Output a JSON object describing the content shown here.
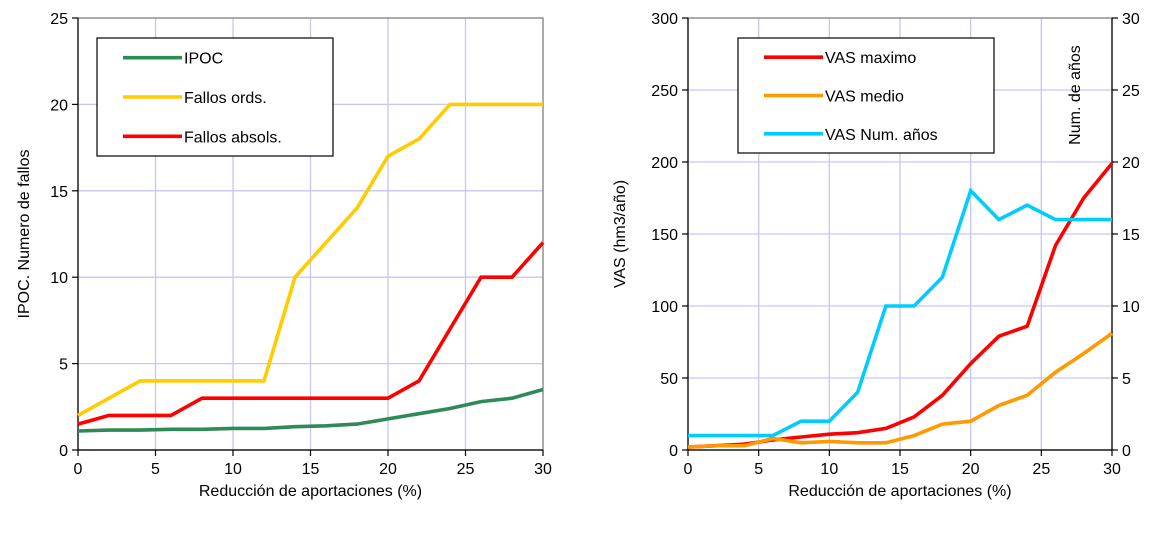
{
  "charts": [
    {
      "type": "line",
      "xlabel": "Reducción de aportaciones (%)",
      "ylabel": "IPOC.  Numero de fallos",
      "xlim": [
        0,
        30
      ],
      "ylim": [
        0,
        25
      ],
      "x_ticks": [
        0,
        5,
        10,
        15,
        20,
        25,
        30
      ],
      "y_ticks": [
        0,
        5,
        10,
        15,
        20,
        25
      ],
      "grid": true,
      "legend_placement": "top-left",
      "series": [
        {
          "name": "IPOC",
          "color": "#2e8b57",
          "x": [
            0,
            2,
            4,
            6,
            8,
            10,
            12,
            14,
            16,
            18,
            20,
            22,
            24,
            26,
            28,
            30
          ],
          "y": [
            1.1,
            1.15,
            1.15,
            1.2,
            1.2,
            1.25,
            1.25,
            1.35,
            1.4,
            1.5,
            1.8,
            2.1,
            2.4,
            2.8,
            3.0,
            3.5
          ]
        },
        {
          "name": "Fallos ords.",
          "color": "#ffcc00",
          "x": [
            0,
            2,
            4,
            6,
            8,
            10,
            12,
            14,
            16,
            18,
            20,
            22,
            24,
            26,
            28,
            30
          ],
          "y": [
            2,
            3,
            4,
            4,
            4,
            4,
            4,
            10,
            12,
            14,
            17,
            18,
            20,
            20,
            20,
            20
          ]
        },
        {
          "name": "Fallos absols.",
          "color": "#ff0000",
          "x": [
            0,
            2,
            4,
            6,
            8,
            10,
            12,
            14,
            16,
            18,
            20,
            22,
            24,
            26,
            28,
            30
          ],
          "y": [
            1.5,
            2,
            2,
            2,
            3,
            3,
            3,
            3,
            3,
            3,
            3,
            4,
            7,
            10,
            10,
            12
          ]
        }
      ]
    },
    {
      "type": "line",
      "xlabel": "Reducción de aportaciones (%)",
      "ylabel": "VAS (hm3/año)",
      "y2label": "Num. de años",
      "xlim": [
        0,
        30
      ],
      "ylim": [
        0,
        300
      ],
      "y2lim": [
        0,
        30
      ],
      "x_ticks": [
        0,
        5,
        10,
        15,
        20,
        25,
        30
      ],
      "y_ticks": [
        0,
        50,
        100,
        150,
        200,
        250,
        300
      ],
      "y2_ticks": [
        0,
        5,
        10,
        15,
        20,
        25,
        30
      ],
      "grid": true,
      "legend_placement": "top-left",
      "series": [
        {
          "name": "VAS maximo",
          "color": "#ff0000",
          "axis": "left",
          "x": [
            0,
            2,
            4,
            6,
            8,
            10,
            12,
            14,
            16,
            18,
            20,
            22,
            24,
            26,
            28,
            30
          ],
          "y": [
            2,
            3,
            4,
            7,
            9,
            11,
            12,
            15,
            23,
            38,
            60,
            79,
            86,
            142,
            175,
            199
          ]
        },
        {
          "name": "VAS medio",
          "color": "#ff9900",
          "axis": "left",
          "x": [
            0,
            2,
            4,
            6,
            8,
            10,
            12,
            14,
            16,
            18,
            20,
            22,
            24,
            26,
            28,
            30
          ],
          "y": [
            2,
            3,
            3,
            8,
            5,
            6,
            5,
            5,
            10,
            18,
            20,
            31,
            38,
            54,
            67,
            81
          ]
        },
        {
          "name": "VAS Num. años",
          "color": "#00ccff",
          "axis": "right",
          "x": [
            0,
            2,
            4,
            6,
            8,
            10,
            12,
            14,
            16,
            18,
            20,
            22,
            24,
            26,
            28,
            30
          ],
          "y": [
            1,
            1,
            1,
            1,
            2,
            2,
            4,
            10,
            10,
            12,
            18,
            16,
            17,
            16,
            16,
            16
          ]
        }
      ]
    }
  ],
  "chart_data": [
    {
      "type": "line",
      "xlabel": "Reducción de aportaciones (%)",
      "ylabel": "IPOC.  Numero de fallos",
      "xlim": [
        0,
        30
      ],
      "ylim": [
        0,
        25
      ],
      "x": [
        0,
        2,
        4,
        6,
        8,
        10,
        12,
        14,
        16,
        18,
        20,
        22,
        24,
        26,
        28,
        30
      ],
      "series": [
        {
          "name": "IPOC",
          "values": [
            1.1,
            1.15,
            1.15,
            1.2,
            1.2,
            1.25,
            1.25,
            1.35,
            1.4,
            1.5,
            1.8,
            2.1,
            2.4,
            2.8,
            3.0,
            3.5
          ]
        },
        {
          "name": "Fallos ords.",
          "values": [
            2,
            3,
            4,
            4,
            4,
            4,
            4,
            10,
            12,
            14,
            17,
            18,
            20,
            20,
            20,
            20
          ]
        },
        {
          "name": "Fallos absols.",
          "values": [
            1.5,
            2,
            2,
            2,
            3,
            3,
            3,
            3,
            3,
            3,
            3,
            4,
            7,
            10,
            10,
            12
          ]
        }
      ],
      "grid": true,
      "legend": "top-left"
    },
    {
      "type": "line",
      "xlabel": "Reducción de aportaciones (%)",
      "ylabel": "VAS (hm3/año)",
      "y2label": "Num. de años",
      "xlim": [
        0,
        30
      ],
      "ylim": [
        0,
        300
      ],
      "y2lim": [
        0,
        30
      ],
      "x": [
        0,
        2,
        4,
        6,
        8,
        10,
        12,
        14,
        16,
        18,
        20,
        22,
        24,
        26,
        28,
        30
      ],
      "series": [
        {
          "name": "VAS maximo",
          "axis": "left",
          "values": [
            2,
            3,
            4,
            7,
            9,
            11,
            12,
            15,
            23,
            38,
            60,
            79,
            86,
            142,
            175,
            199
          ]
        },
        {
          "name": "VAS medio",
          "axis": "left",
          "values": [
            2,
            3,
            3,
            8,
            5,
            6,
            5,
            5,
            10,
            18,
            20,
            31,
            38,
            54,
            67,
            81
          ]
        },
        {
          "name": "VAS Num. años",
          "axis": "right",
          "values": [
            1,
            1,
            1,
            1,
            2,
            2,
            4,
            10,
            10,
            12,
            18,
            16,
            17,
            16,
            16,
            16
          ]
        }
      ],
      "grid": true,
      "legend": "top-left"
    }
  ]
}
